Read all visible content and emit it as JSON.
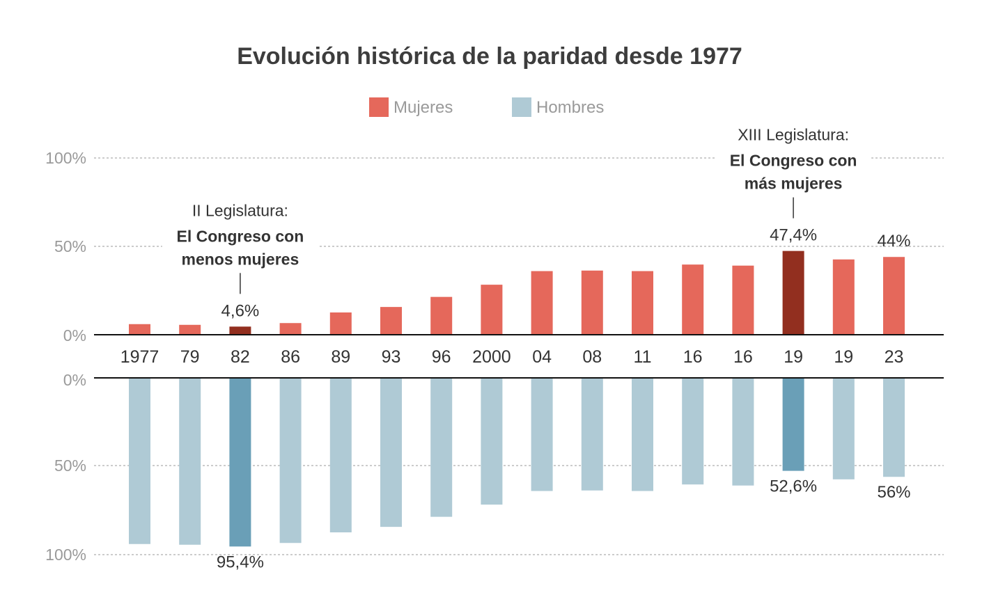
{
  "chart_data": {
    "type": "bar",
    "title": "Evolución histórica de la paridad desde 1977",
    "categories": [
      "1977",
      "79",
      "82",
      "86",
      "89",
      "93",
      "96",
      "2000",
      "04",
      "08",
      "11",
      "16",
      "16",
      "19",
      "19",
      "23"
    ],
    "series": [
      {
        "name": "Mujeres",
        "color": "#e5685b",
        "highlight_color": "#922f1f",
        "values": [
          6,
          5.6,
          4.6,
          6.6,
          12.6,
          15.7,
          21.4,
          28.3,
          36,
          36.3,
          36,
          39.7,
          39.1,
          47.4,
          42.6,
          44
        ]
      },
      {
        "name": "Hombres",
        "color": "#afcad5",
        "highlight_color": "#6a9fb7",
        "values": [
          94,
          94.4,
          95.4,
          93.4,
          87.4,
          84.3,
          78.6,
          71.7,
          64,
          63.7,
          64,
          60.3,
          60.9,
          52.6,
          57.4,
          56
        ]
      }
    ],
    "highlight_indices": [
      2,
      13
    ],
    "top_panel": {
      "ylim": [
        0,
        100
      ],
      "yticks": [
        "0%",
        "50%",
        "100%"
      ]
    },
    "bottom_panel": {
      "ylim": [
        0,
        100
      ],
      "yticks": [
        "0%",
        "50%",
        "100%"
      ]
    },
    "value_labels": {
      "mujeres": [
        {
          "index": 2,
          "text": "4,6%"
        },
        {
          "index": 13,
          "text": "47,4%"
        },
        {
          "index": 15,
          "text": "44%"
        }
      ],
      "hombres": [
        {
          "index": 2,
          "text": "95,4%"
        },
        {
          "index": 13,
          "text": "52,6%"
        },
        {
          "index": 15,
          "text": "56%"
        }
      ]
    },
    "annotations": [
      {
        "index": 2,
        "line1": "II Legislatura:",
        "line2": "El Congreso con",
        "line3": "menos mujeres"
      },
      {
        "index": 13,
        "line1": "XIII Legislatura:",
        "line2": "El Congreso con",
        "line3": "más mujeres"
      }
    ],
    "grid": true,
    "legend_position": "top-center"
  }
}
